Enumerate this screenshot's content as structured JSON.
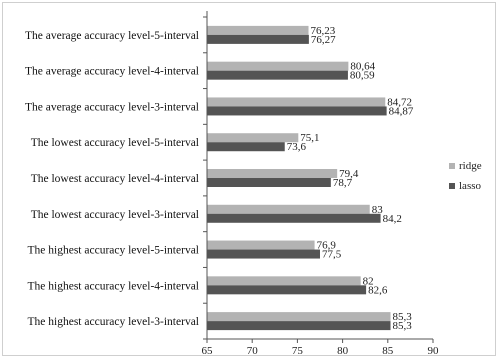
{
  "chart_data": {
    "type": "bar",
    "orientation": "horizontal",
    "title": "",
    "xlabel": "",
    "ylabel": "",
    "xlim": [
      65,
      90
    ],
    "xticks": [
      65,
      70,
      75,
      80,
      85,
      90
    ],
    "grid": false,
    "legend_position": "right",
    "categories": [
      "The average accuracy level-5-interval",
      "The average accuracy level-4-interval",
      "The average accuracy level-3-interval",
      "The lowest accuracy level-5-interval",
      "The lowest accuracy level-4-interval",
      "The lowest accuracy level-3-interval",
      "The highest accuracy level-5-interval",
      "The highest accuracy level-4-interval",
      "The highest accuracy level-3-interval"
    ],
    "series": [
      {
        "name": "ridge",
        "color": "#b3b3b3",
        "values": [
          76.23,
          80.64,
          84.72,
          75.1,
          79.4,
          83,
          76.9,
          82,
          85.3
        ],
        "labels": [
          "76,23",
          "80,64",
          "84,72",
          "75,1",
          "79,4",
          "83",
          "76,9",
          "82",
          "85,3"
        ]
      },
      {
        "name": "lasso",
        "color": "#545454",
        "values": [
          76.27,
          80.59,
          84.87,
          73.6,
          78.7,
          84.2,
          77.5,
          82.6,
          85.3
        ],
        "labels": [
          "76,27",
          "80,59",
          "84,87",
          "73,6",
          "78,7",
          "84,2",
          "77,5",
          "82,6",
          "85,3"
        ]
      }
    ]
  }
}
